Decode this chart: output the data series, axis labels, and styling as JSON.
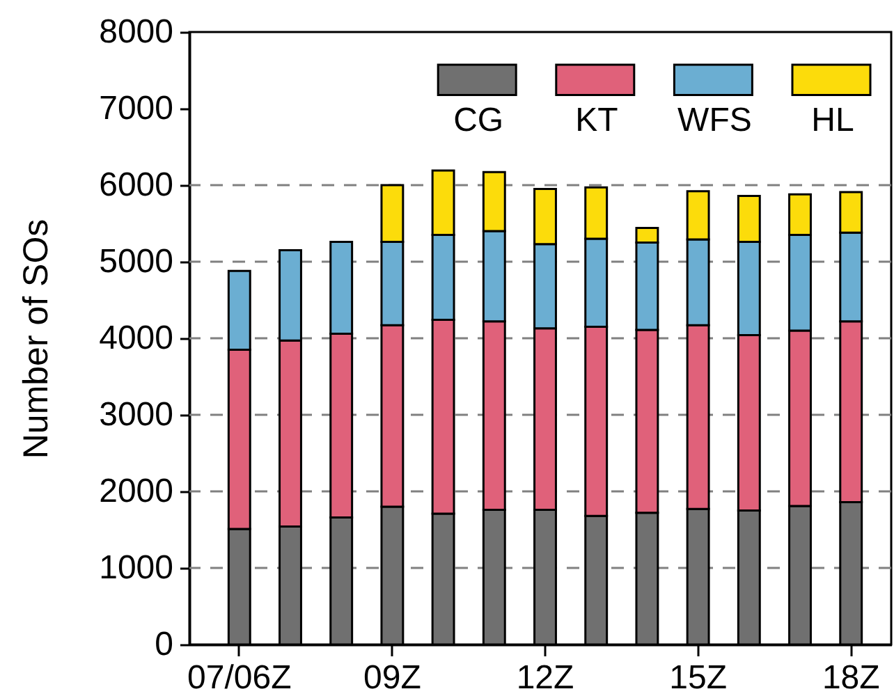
{
  "chart_data": {
    "type": "bar",
    "ylabel": "Number of SOs",
    "categories": [
      "07/06Z",
      null,
      null,
      "09Z",
      null,
      null,
      "12Z",
      null,
      null,
      "15Z",
      null,
      null,
      "18Z"
    ],
    "stacked": true,
    "series": [
      {
        "name": "CG",
        "color": "#707070",
        "values": [
          1510,
          1540,
          1660,
          1800,
          1710,
          1760,
          1760,
          1680,
          1720,
          1770,
          1750,
          1810,
          1860
        ]
      },
      {
        "name": "KT",
        "color": "#e0617a",
        "values": [
          2340,
          2430,
          2400,
          2370,
          2530,
          2460,
          2370,
          2470,
          2390,
          2400,
          2290,
          2290,
          2360
        ]
      },
      {
        "name": "WFS",
        "color": "#6baed2",
        "values": [
          1030,
          1180,
          1200,
          1090,
          1110,
          1180,
          1100,
          1150,
          1140,
          1120,
          1220,
          1250,
          1160
        ]
      },
      {
        "name": "HL",
        "color": "#fcdc0b",
        "values": [
          null,
          null,
          null,
          740,
          840,
          770,
          720,
          670,
          190,
          630,
          600,
          530,
          530
        ]
      }
    ],
    "ylim": [
      0,
      8000
    ],
    "yticks": [
      0,
      1000,
      2000,
      3000,
      4000,
      5000,
      6000,
      7000,
      8000
    ],
    "ref_lines": [
      {
        "axis": "y",
        "value": 1000,
        "color": "#808080",
        "line_style": "dashed"
      },
      {
        "axis": "y",
        "value": 2000,
        "color": "#808080",
        "line_style": "dashed"
      },
      {
        "axis": "y",
        "value": 3000,
        "color": "#808080",
        "line_style": "dashed"
      },
      {
        "axis": "y",
        "value": 4000,
        "color": "#808080",
        "line_style": "dashed"
      },
      {
        "axis": "y",
        "value": 5000,
        "color": "#808080",
        "line_style": "dashed"
      },
      {
        "axis": "y",
        "value": 6000,
        "color": "#808080",
        "line_style": "dashed"
      }
    ],
    "legend": "top right"
  }
}
